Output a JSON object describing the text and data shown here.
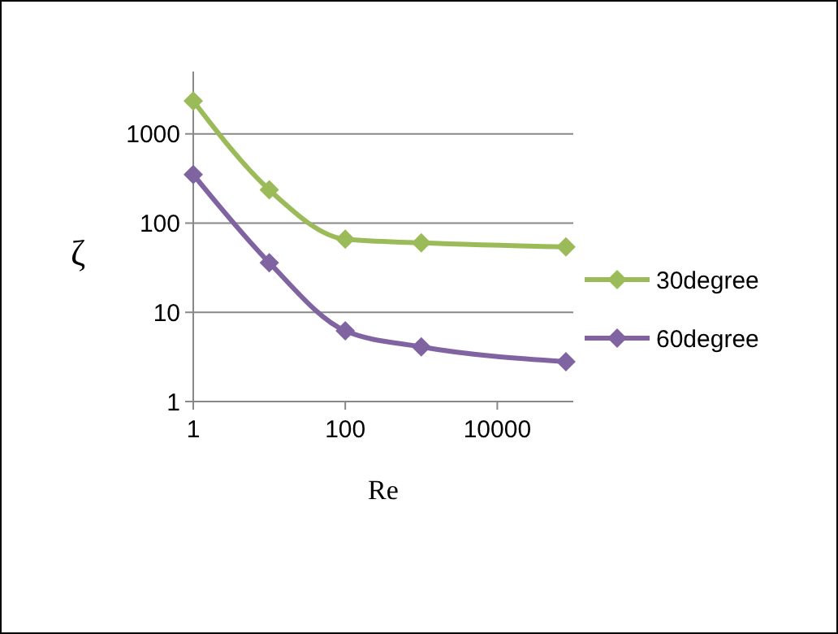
{
  "chart_data": {
    "type": "line",
    "xlabel": "Re",
    "ylabel": "ζ",
    "log": "xy",
    "x": [
      1,
      10,
      100,
      1000,
      80000
    ],
    "xlim": [
      1,
      100000
    ],
    "xticks": [
      1,
      100,
      10000
    ],
    "ylim": [
      1,
      5000
    ],
    "yticks": [
      1,
      10,
      100,
      1000
    ],
    "grid": "y",
    "legend": "right",
    "marker": "diamond",
    "line_style": "solid",
    "series": [
      {
        "name": "30degree",
        "color": "#9bbb59",
        "values": [
          2340,
          236,
          66,
          60,
          54
        ]
      },
      {
        "name": "60degree",
        "color": "#8064a2",
        "values": [
          350,
          36,
          6.2,
          4.1,
          2.8
        ]
      }
    ]
  }
}
